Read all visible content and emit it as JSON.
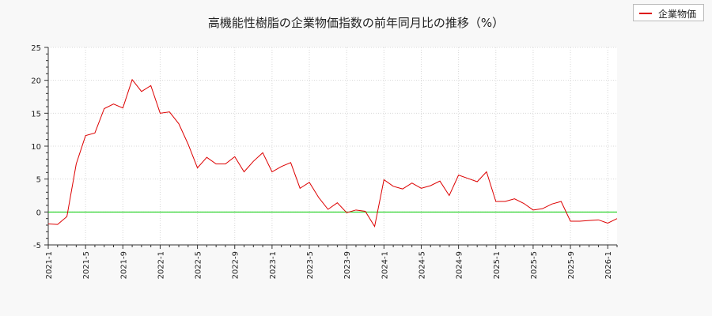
{
  "chart_data": {
    "type": "line",
    "title": "高機能性樹脂の企業物価指数の前年同月比の推移（%）",
    "xlabel": "",
    "ylabel": "",
    "ylim": [
      -5,
      25
    ],
    "yticks": [
      -5,
      0,
      5,
      10,
      15,
      20,
      25
    ],
    "grid": true,
    "legend_position": "top-right",
    "reference_line": {
      "y": 0,
      "color": "#00cc00"
    },
    "x_ticks": [
      "2021-1",
      "2021-5",
      "2021-9",
      "2022-1",
      "2022-5",
      "2022-9",
      "2023-1",
      "2023-5",
      "2023-9",
      "2024-1",
      "2024-5",
      "2024-9",
      "2025-1",
      "2025-5",
      "2025-9",
      "2026-1"
    ],
    "x": [
      "2021-1",
      "2021-2",
      "2021-3",
      "2021-4",
      "2021-5",
      "2021-6",
      "2021-7",
      "2021-8",
      "2021-9",
      "2021-10",
      "2021-11",
      "2021-12",
      "2022-1",
      "2022-2",
      "2022-3",
      "2022-4",
      "2022-5",
      "2022-6",
      "2022-7",
      "2022-8",
      "2022-9",
      "2022-10",
      "2022-11",
      "2022-12",
      "2023-1",
      "2023-2",
      "2023-3",
      "2023-4",
      "2023-5",
      "2023-6",
      "2023-7",
      "2023-8",
      "2023-9",
      "2023-10",
      "2023-11",
      "2023-12",
      "2024-1",
      "2024-2",
      "2024-3",
      "2024-4",
      "2024-5",
      "2024-6",
      "2024-7",
      "2024-8",
      "2024-9",
      "2024-10",
      "2024-11",
      "2024-12",
      "2025-1",
      "2025-2",
      "2025-3",
      "2025-4",
      "2025-5",
      "2025-6",
      "2025-7",
      "2025-8",
      "2025-9",
      "2025-10",
      "2025-11",
      "2025-12",
      "2026-1",
      "2026-2"
    ],
    "series": [
      {
        "name": "企業物価",
        "color": "#dd0000",
        "values": [
          -1.8,
          -1.9,
          -0.7,
          7.3,
          11.6,
          12.0,
          15.7,
          16.4,
          15.8,
          20.1,
          18.3,
          19.2,
          15.0,
          15.2,
          13.4,
          10.3,
          6.7,
          8.3,
          7.3,
          7.3,
          8.4,
          6.1,
          7.7,
          9.0,
          6.1,
          6.9,
          7.5,
          3.6,
          4.5,
          2.2,
          0.4,
          1.4,
          -0.1,
          0.3,
          0.1,
          -2.2,
          4.9,
          3.9,
          3.5,
          4.4,
          3.6,
          4.0,
          4.7,
          2.5,
          5.6,
          5.1,
          4.6,
          6.1,
          1.6,
          1.6,
          2.0,
          1.3,
          0.3,
          0.5,
          1.2,
          1.6,
          -1.4,
          -1.4,
          -1.3,
          -1.2,
          -1.7,
          -1.0
        ]
      }
    ]
  }
}
